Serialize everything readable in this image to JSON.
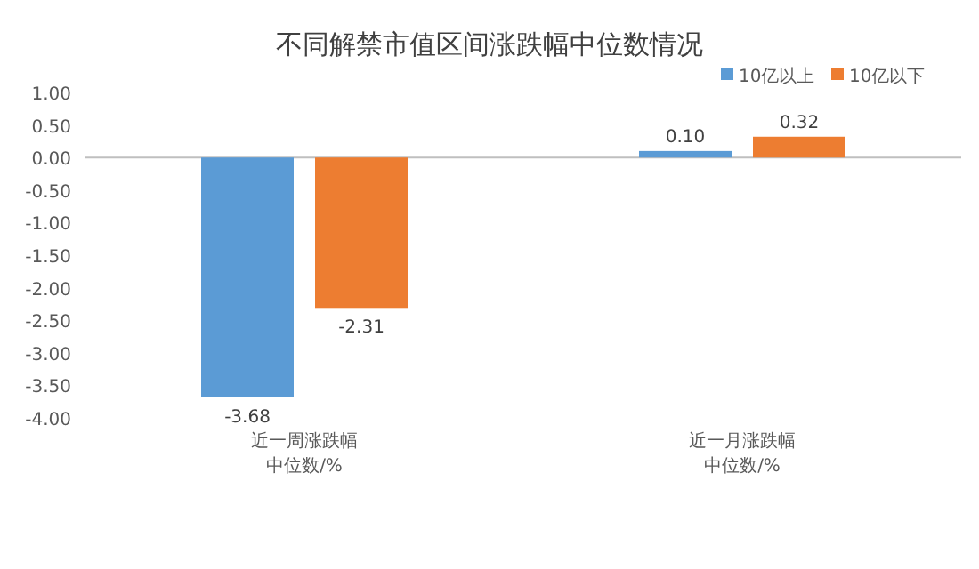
{
  "chart_data": {
    "type": "bar",
    "title": "不同解禁市值区间涨跌幅中位数情况",
    "categories": [
      "近一周涨跌幅中位数/%",
      "近一月涨跌幅中位数/%"
    ],
    "series": [
      {
        "name": "10亿以上",
        "color": "#5b9bd5",
        "values": [
          -3.68,
          0.1
        ],
        "value_labels": [
          "-3.68",
          "0.10"
        ]
      },
      {
        "name": "10亿以下",
        "color": "#ed7d31",
        "values": [
          -2.31,
          0.32
        ],
        "value_labels": [
          "-2.31",
          "0.32"
        ]
      }
    ],
    "ylim": [
      -4,
      1
    ],
    "yticks": [
      {
        "value": 1,
        "label": "1.00"
      },
      {
        "value": 0.5,
        "label": "0.50"
      },
      {
        "value": 0,
        "label": "0.00"
      },
      {
        "value": -0.5,
        "label": "-0.50"
      },
      {
        "value": -1,
        "label": "-1.00"
      },
      {
        "value": -1.5,
        "label": "-1.50"
      },
      {
        "value": -2,
        "label": "-2.00"
      },
      {
        "value": -2.5,
        "label": "-2.50"
      },
      {
        "value": -3,
        "label": "-3.00"
      },
      {
        "value": -3.5,
        "label": "-3.50"
      },
      {
        "value": -4,
        "label": "-4.00"
      }
    ],
    "legend": "top right"
  }
}
